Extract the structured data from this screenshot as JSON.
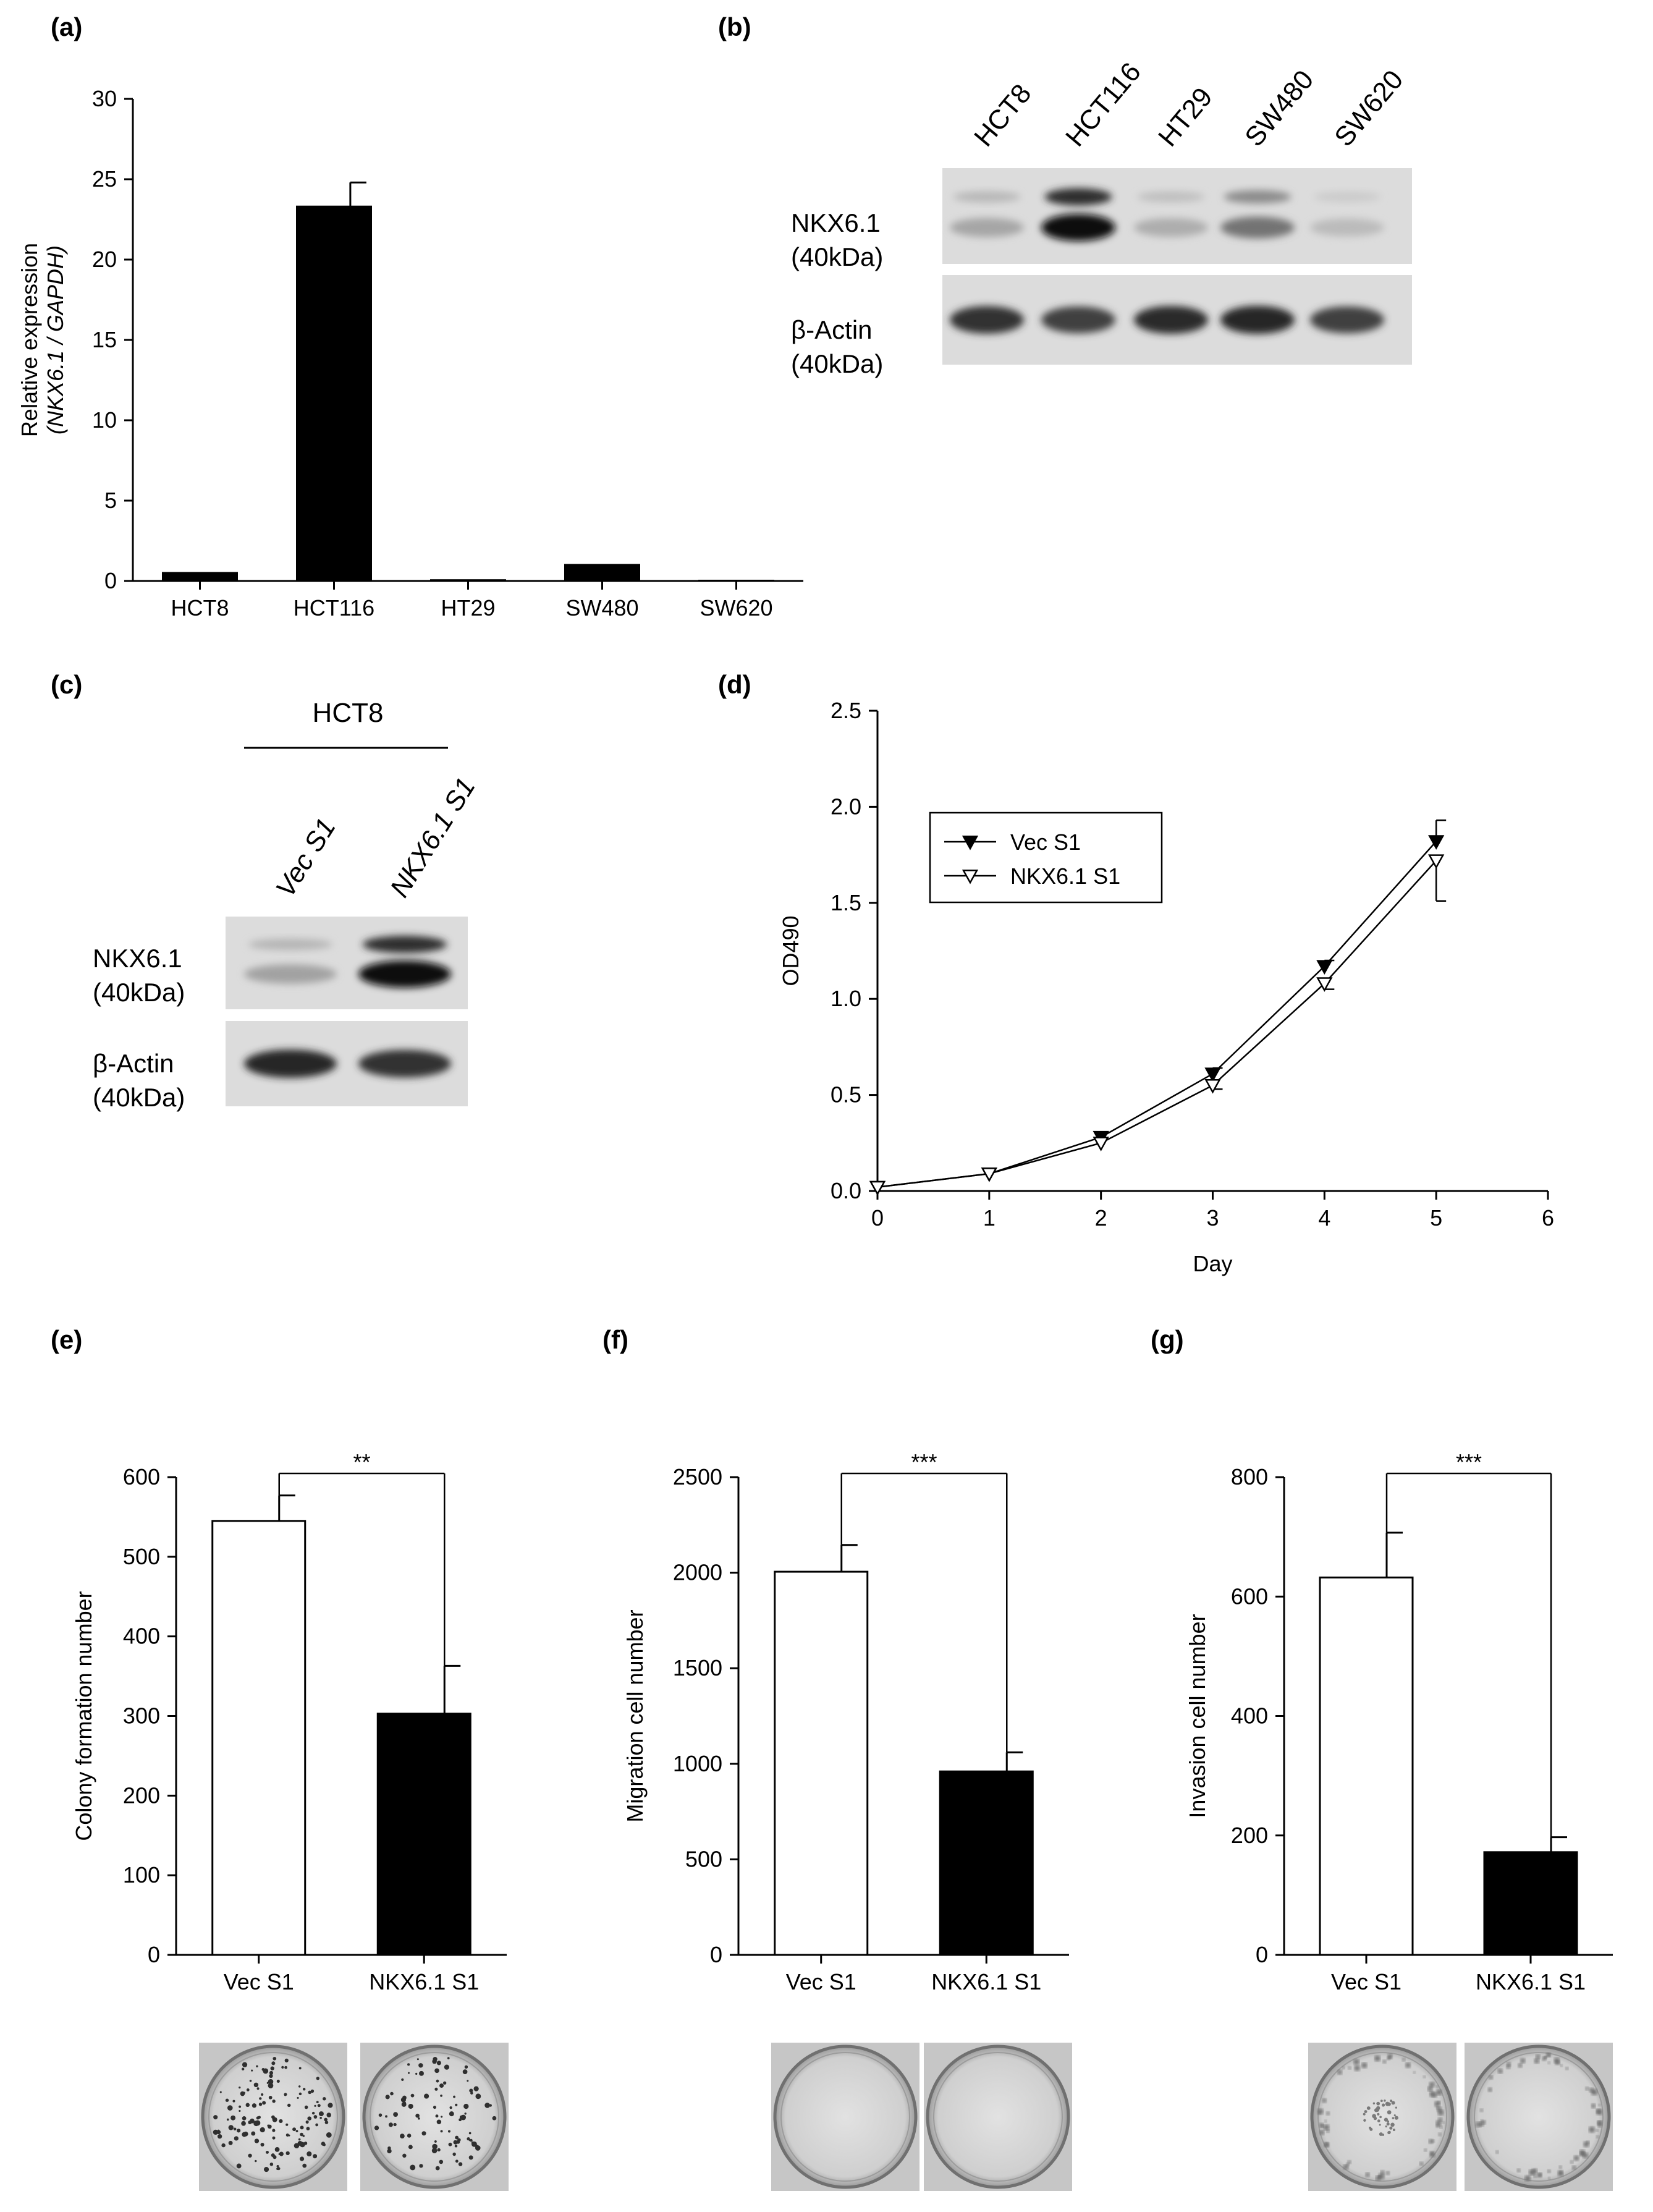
{
  "panel_labels": [
    "(a)",
    "(b)",
    "(c)",
    "(d)",
    "(e)",
    "(f)",
    "(g)"
  ],
  "panel_b": {
    "lanes": [
      "HCT8",
      "HCT116",
      "HT29",
      "SW480",
      "SW620"
    ],
    "rows": [
      {
        "protein": "NKX6.1",
        "size": "(40kDa)",
        "intensities": [
          0.18,
          1.0,
          0.14,
          0.45,
          0.07
        ]
      },
      {
        "protein": "β-Actin",
        "size": "(40kDa)",
        "intensities": [
          0.8,
          0.72,
          0.82,
          0.85,
          0.72
        ]
      }
    ]
  },
  "panel_c": {
    "group": "HCT8",
    "lanes": [
      "Vec S1",
      "NKX6.1 S1"
    ],
    "rows": [
      {
        "protein": "NKX6.1",
        "size": "(40kDa)",
        "intensities": [
          0.2,
          1.0
        ]
      },
      {
        "protein": "β-Actin",
        "size": "(40kDa)",
        "intensities": [
          0.85,
          0.8
        ]
      }
    ]
  },
  "chart_data": [
    {
      "id": "a",
      "type": "bar",
      "categories": [
        "HCT8",
        "HCT116",
        "HT29",
        "SW480",
        "SW620"
      ],
      "values": [
        0.5,
        23.3,
        0.05,
        1.0,
        0.02
      ],
      "errors": [
        0,
        1.5,
        0,
        0,
        0
      ],
      "ylabel_line1": "Relative expression",
      "ylabel_line2": "(NKX6.1 / GAPDH)",
      "ylim": [
        0,
        30
      ],
      "yticks": [
        0,
        5,
        10,
        15,
        20,
        25,
        30
      ],
      "bar_color": "#000000"
    },
    {
      "id": "d",
      "type": "line",
      "x": [
        0,
        1,
        2,
        3,
        4,
        5
      ],
      "series": [
        {
          "name": "Vec S1",
          "values": [
            0.02,
            0.09,
            0.28,
            0.61,
            1.17,
            1.82
          ],
          "errors": [
            0,
            0,
            0,
            0.03,
            0.03,
            0.11
          ],
          "marker": "filled-triangle-down"
        },
        {
          "name": "NKX6.1 S1",
          "values": [
            0.02,
            0.09,
            0.25,
            0.55,
            1.08,
            1.72
          ],
          "errors": [
            0,
            0,
            0,
            0.02,
            0.03,
            0.21
          ],
          "marker": "open-triangle-down"
        }
      ],
      "xlabel": "Day",
      "ylabel": "OD490",
      "xlim": [
        0,
        6
      ],
      "ylim": [
        0,
        2.5
      ],
      "xticks": [
        "0",
        "1",
        "2",
        "3",
        "4",
        "5",
        "6"
      ],
      "yticks": [
        "0.0",
        "0.5",
        "1.0",
        "1.5",
        "2.0",
        "2.5"
      ],
      "legend_position": "upper-left"
    },
    {
      "id": "e",
      "type": "bar",
      "categories": [
        "Vec S1",
        "NKX6.1 S1"
      ],
      "values": [
        545,
        303
      ],
      "errors": [
        32,
        60
      ],
      "ylabel": "Colony formation number",
      "ylim": [
        0,
        600
      ],
      "yticks": [
        0,
        100,
        200,
        300,
        400,
        500,
        600
      ],
      "significance": "**",
      "bar_colors": [
        "#ffffff",
        "#000000"
      ]
    },
    {
      "id": "f",
      "type": "bar",
      "categories": [
        "Vec S1",
        "NKX6.1 S1"
      ],
      "values": [
        2005,
        960
      ],
      "errors": [
        140,
        100
      ],
      "ylabel": "Migration cell number",
      "ylim": [
        0,
        2500
      ],
      "yticks": [
        0,
        500,
        1000,
        1500,
        2000,
        2500
      ],
      "significance": "***",
      "bar_colors": [
        "#ffffff",
        "#000000"
      ]
    },
    {
      "id": "g",
      "type": "bar",
      "categories": [
        "Vec S1",
        "NKX6.1 S1"
      ],
      "values": [
        632,
        172
      ],
      "errors": [
        75,
        25
      ],
      "ylabel": "Invasion cell number",
      "ylim": [
        0,
        800
      ],
      "yticks": [
        0,
        200,
        400,
        600,
        800
      ],
      "significance": "***",
      "bar_colors": [
        "#ffffff",
        "#000000"
      ]
    }
  ]
}
